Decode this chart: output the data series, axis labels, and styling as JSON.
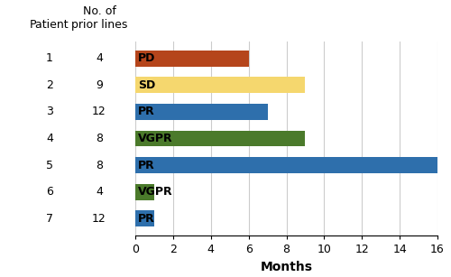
{
  "patients": [
    1,
    2,
    3,
    4,
    5,
    6,
    7
  ],
  "prior_lines": [
    4,
    9,
    12,
    8,
    8,
    4,
    12
  ],
  "values": [
    6,
    9,
    7,
    9,
    16,
    1,
    1
  ],
  "labels": [
    "PD",
    "SD",
    "PR",
    "VGPR",
    "PR",
    "VGPR",
    "PR"
  ],
  "colors": [
    "#b5451b",
    "#f5d76e",
    "#2e6fac",
    "#4b7a2b",
    "#2e6fac",
    "#4b7a2b",
    "#2e6fac"
  ],
  "xlabel": "Months",
  "patient_label": "Patient",
  "prior_lines_label": "No. of\nprior lines",
  "xlim": [
    0,
    16
  ],
  "xticks": [
    0,
    2,
    4,
    6,
    8,
    10,
    12,
    14,
    16
  ],
  "bar_height": 0.6,
  "label_fontsize": 9,
  "axis_label_fontsize": 10,
  "tick_fontsize": 9,
  "header_fontsize": 9,
  "background_color": "#ffffff",
  "grid_color": "#cccccc"
}
